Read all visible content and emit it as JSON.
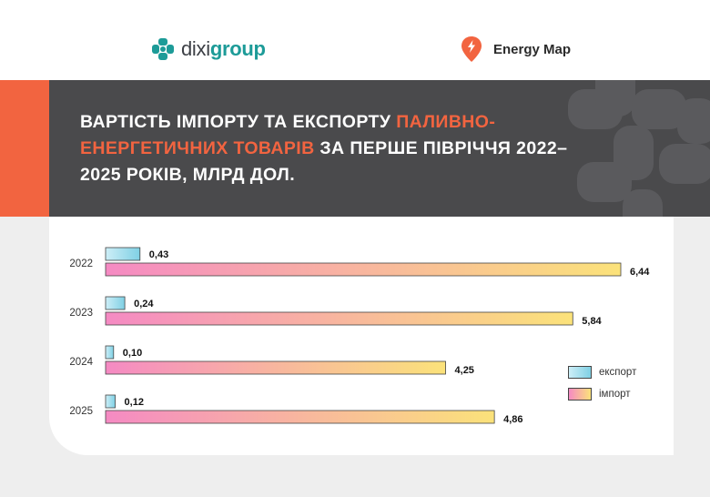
{
  "brand": {
    "dixi_prefix": "dixi",
    "dixi_suffix": "group",
    "energymap": "Energy Map"
  },
  "title": {
    "part1": "ВАРТІСТЬ ІМПОРТУ ТА ЕКСПОРТУ ",
    "highlight": "ПАЛИВНО-ЕНЕРГЕТИЧНИХ ТОВАРІВ",
    "part2": " ЗА ПЕРШЕ ПІВРІЧЧЯ 2022–2025 РОКІВ, МЛРД ДОЛ."
  },
  "colors": {
    "accent": "#f26440",
    "teal": "#1d9b98",
    "dark_band": "#4a4a4c",
    "export_gradient": [
      "#cdeef7",
      "#7fd0e4"
    ],
    "import_gradient": [
      "#f58ac3",
      "#fbe27a"
    ]
  },
  "chart_data": {
    "type": "bar",
    "orientation": "horizontal",
    "categories": [
      "2022",
      "2023",
      "2024",
      "2025"
    ],
    "series": [
      {
        "name": "експорт",
        "values": [
          0.43,
          0.24,
          0.1,
          0.12
        ],
        "labels": [
          "0,43",
          "0,24",
          "0,10",
          "0,12"
        ]
      },
      {
        "name": "імпорт",
        "values": [
          6.44,
          5.84,
          4.25,
          4.86
        ],
        "labels": [
          "6,44",
          "5,84",
          "4,25",
          "4,86"
        ]
      }
    ],
    "xlim": [
      0,
      6.44
    ],
    "legend_position": "right"
  },
  "legend": {
    "export": "експорт",
    "import": "імпорт"
  }
}
